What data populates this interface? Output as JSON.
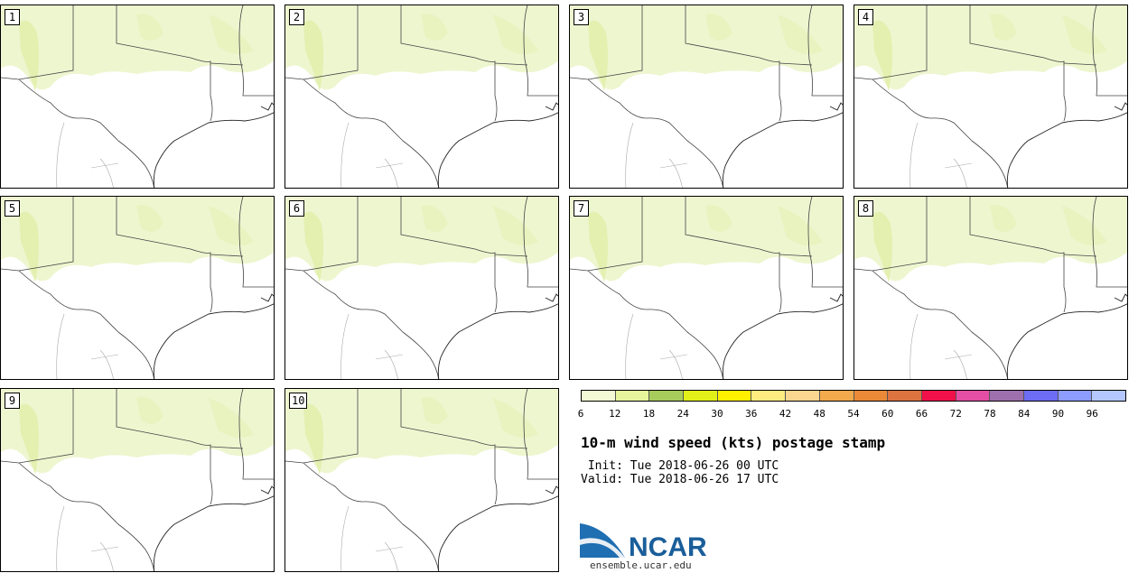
{
  "stamps": [
    {
      "label": "1"
    },
    {
      "label": "2"
    },
    {
      "label": "3"
    },
    {
      "label": "4"
    },
    {
      "label": "5"
    },
    {
      "label": "6"
    },
    {
      "label": "7"
    },
    {
      "label": "8"
    },
    {
      "label": "9"
    },
    {
      "label": "10"
    }
  ],
  "colorbar": {
    "ticks": [
      "6",
      "12",
      "18",
      "24",
      "30",
      "36",
      "42",
      "48",
      "54",
      "60",
      "66",
      "72",
      "78",
      "84",
      "90",
      "96"
    ],
    "colors": [
      "#f3f9d4",
      "#e6f59c",
      "#a8cc5c",
      "#e2f01a",
      "#fff000",
      "#ffec80",
      "#fad690",
      "#f2aa4c",
      "#ea8a38",
      "#dd7440",
      "#f0104a",
      "#e44ea4",
      "#9e70ae",
      "#6c6cf4",
      "#8c9cff",
      "#b4c8ff"
    ]
  },
  "info": {
    "title": "10-m wind speed (kts) postage stamp",
    "init": " Init: Tue 2018-06-26 00 UTC",
    "valid": "Valid: Tue 2018-06-26 17 UTC"
  },
  "logo": {
    "text": "NCAR",
    "url": "ensemble.ucar.edu",
    "colors": {
      "text": "#1a5e9a",
      "swoosh": "#1f6fb2"
    }
  },
  "map_colors": {
    "land_light": "#eef6d0",
    "land_mid": "#e3f0b0",
    "lines": "#444444"
  }
}
